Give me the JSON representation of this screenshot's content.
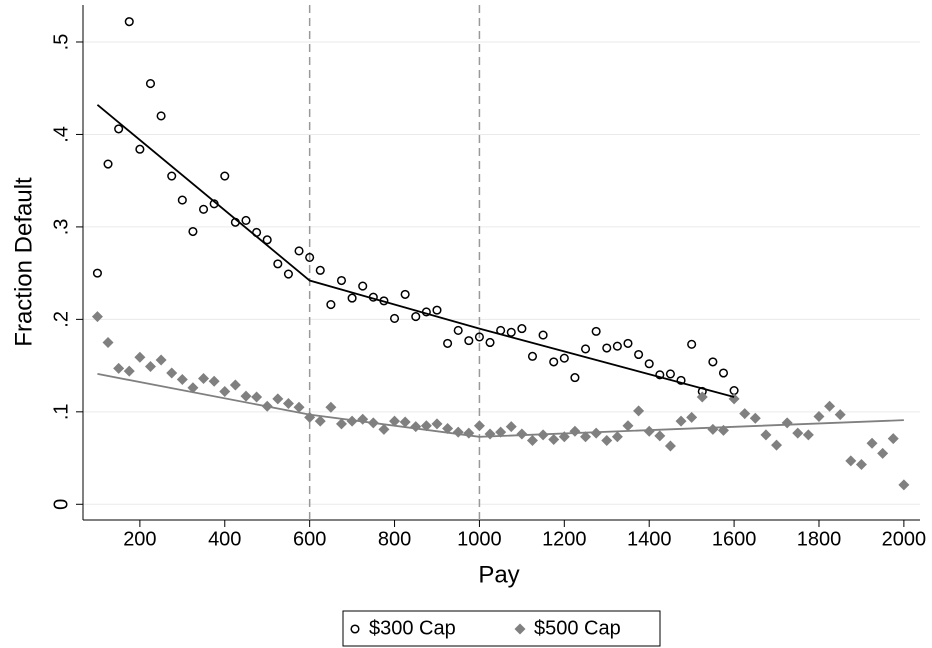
{
  "chart_data": {
    "type": "scatter",
    "xlabel": "Pay",
    "ylabel": "Fraction Default",
    "xlim": [
      66,
      2038
    ],
    "ylim": [
      -0.017,
      0.54
    ],
    "xticks": [
      200,
      400,
      600,
      800,
      1000,
      1200,
      1400,
      1600,
      1800,
      2000
    ],
    "yticks": [
      0,
      {
        "value": 0.1,
        "label": ".1"
      },
      {
        "value": 0.2,
        "label": ".2"
      },
      {
        "value": 0.3,
        "label": ".3"
      },
      {
        "value": 0.4,
        "label": ".4"
      },
      {
        "value": 0.5,
        "label": ".5"
      }
    ],
    "grid": true,
    "legend": "bottom",
    "vlines": [
      600,
      1000
    ],
    "series": [
      {
        "name": "$300 Cap",
        "color": "#000000",
        "marker": "circle",
        "x": [
          100,
          125,
          150,
          175,
          200,
          225,
          250,
          275,
          300,
          325,
          350,
          375,
          400,
          425,
          450,
          475,
          500,
          525,
          550,
          575,
          600,
          625,
          650,
          675,
          700,
          725,
          750,
          775,
          800,
          825,
          850,
          875,
          900,
          925,
          950,
          975,
          1000,
          1025,
          1050,
          1075,
          1100,
          1125,
          1150,
          1175,
          1200,
          1225,
          1250,
          1275,
          1300,
          1325,
          1350,
          1375,
          1400,
          1425,
          1450,
          1475,
          1500,
          1525,
          1550,
          1575,
          1600
        ],
        "values": [
          0.25,
          0.368,
          0.406,
          0.522,
          0.384,
          0.455,
          0.42,
          0.355,
          0.329,
          0.295,
          0.319,
          0.325,
          0.355,
          0.305,
          0.307,
          0.294,
          0.286,
          0.26,
          0.249,
          0.274,
          0.267,
          0.253,
          0.216,
          0.242,
          0.223,
          0.236,
          0.224,
          0.22,
          0.201,
          0.227,
          0.203,
          0.208,
          0.21,
          0.174,
          0.188,
          0.177,
          0.181,
          0.175,
          0.188,
          0.186,
          0.19,
          0.16,
          0.183,
          0.154,
          0.158,
          0.137,
          0.168,
          0.187,
          0.169,
          0.171,
          0.174,
          0.162,
          0.152,
          0.14,
          0.141,
          0.134,
          0.173,
          0.122,
          0.154,
          0.142,
          0.123
        ]
      },
      {
        "name": "$500 Cap",
        "color": "#808080",
        "marker": "diamond",
        "x": [
          100,
          125,
          150,
          175,
          200,
          225,
          250,
          275,
          300,
          325,
          350,
          375,
          400,
          425,
          450,
          475,
          500,
          525,
          550,
          575,
          600,
          625,
          650,
          675,
          700,
          725,
          750,
          775,
          800,
          825,
          850,
          875,
          900,
          925,
          950,
          975,
          1000,
          1025,
          1050,
          1075,
          1100,
          1125,
          1150,
          1175,
          1200,
          1225,
          1250,
          1275,
          1300,
          1325,
          1350,
          1375,
          1400,
          1425,
          1450,
          1475,
          1500,
          1525,
          1550,
          1575,
          1600,
          1625,
          1650,
          1675,
          1700,
          1725,
          1750,
          1775,
          1800,
          1825,
          1850,
          1875,
          1900,
          1925,
          1950,
          1975,
          2000
        ],
        "values": [
          0.203,
          0.175,
          0.147,
          0.144,
          0.159,
          0.149,
          0.156,
          0.142,
          0.135,
          0.126,
          0.136,
          0.133,
          0.122,
          0.129,
          0.117,
          0.116,
          0.106,
          0.114,
          0.109,
          0.105,
          0.094,
          0.09,
          0.105,
          0.087,
          0.09,
          0.092,
          0.088,
          0.081,
          0.09,
          0.089,
          0.084,
          0.085,
          0.087,
          0.082,
          0.078,
          0.077,
          0.085,
          0.076,
          0.078,
          0.084,
          0.076,
          0.069,
          0.075,
          0.07,
          0.073,
          0.079,
          0.073,
          0.077,
          0.069,
          0.073,
          0.085,
          0.101,
          0.079,
          0.074,
          0.063,
          0.09,
          0.094,
          0.116,
          0.081,
          0.08,
          0.114,
          0.098,
          0.093,
          0.075,
          0.064,
          0.088,
          0.077,
          0.075,
          0.095,
          0.106,
          0.097,
          0.047,
          0.043,
          0.066,
          0.055,
          0.071,
          0.021
        ]
      }
    ],
    "fits": [
      {
        "color": "#000000",
        "x": [
          100,
          600,
          1000,
          1600
        ],
        "values": [
          0.432,
          0.242,
          0.19,
          0.116
        ]
      },
      {
        "color": "#808080",
        "x": [
          100,
          600,
          1000,
          2000
        ],
        "values": [
          0.141,
          0.097,
          0.073,
          0.091
        ]
      }
    ]
  }
}
